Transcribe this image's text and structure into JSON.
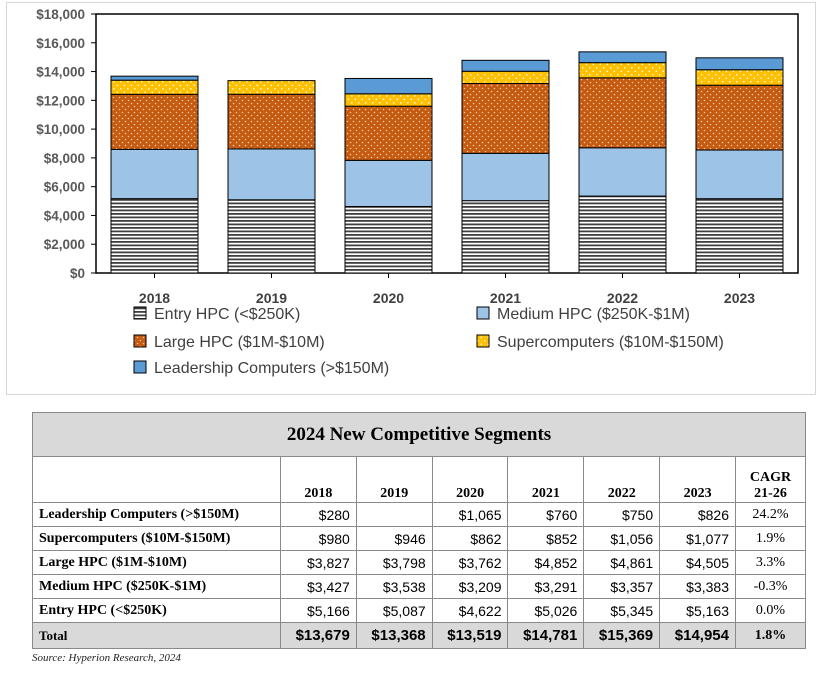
{
  "chart_data": {
    "type": "stacked-bar",
    "categories": [
      "2018",
      "2019",
      "2020",
      "2021",
      "2022",
      "2023"
    ],
    "ylim": [
      0,
      18000
    ],
    "yticks": [
      0,
      2000,
      4000,
      6000,
      8000,
      10000,
      12000,
      14000,
      16000,
      18000
    ],
    "ytick_labels": [
      "$0",
      "$2,000",
      "$4,000",
      "$6,000",
      "$8,000",
      "$10,000",
      "$12,000",
      "$14,000",
      "$16,000",
      "$18,000"
    ],
    "legend_placement": "bottom",
    "series": [
      {
        "name": "Entry HPC (<$250K)",
        "key": "entry",
        "color": "#404040",
        "pattern": "horizontal-stripes",
        "values": [
          5166,
          5087,
          4622,
          5026,
          5345,
          5163
        ]
      },
      {
        "name": "Medium HPC ($250K-$1M)",
        "key": "medium",
        "color": "#9dc3e6",
        "pattern": "solid",
        "values": [
          3427,
          3538,
          3209,
          3291,
          3357,
          3383
        ]
      },
      {
        "name": "Large HPC ($1M-$10M)",
        "key": "large",
        "color": "#c55a11",
        "pattern": "dots",
        "values": [
          3827,
          3798,
          3762,
          4852,
          4861,
          4505
        ]
      },
      {
        "name": "Supercomputers ($10M-$150M)",
        "key": "super",
        "color": "#ffc000",
        "pattern": "dots",
        "values": [
          980,
          946,
          862,
          852,
          1056,
          1077
        ]
      },
      {
        "name": "Leadership Computers (>$150M)",
        "key": "leader",
        "color": "#5b9bd5",
        "pattern": "solid",
        "values": [
          280,
          0,
          1065,
          760,
          750,
          826
        ]
      }
    ]
  },
  "table": {
    "title": "2024 New Competitive Segments",
    "columns": [
      "2018",
      "2019",
      "2020",
      "2021",
      "2022",
      "2023"
    ],
    "cagr_header_line1": "CAGR",
    "cagr_header_line2": "21-26",
    "rows": [
      {
        "label": "Leadership Computers (>$150M)",
        "values": [
          "$280",
          "",
          "$1,065",
          "$760",
          "$750",
          "$826"
        ],
        "cagr": "24.2%"
      },
      {
        "label": "Supercomputers ($10M-$150M)",
        "values": [
          "$980",
          "$946",
          "$862",
          "$852",
          "$1,056",
          "$1,077"
        ],
        "cagr": "1.9%"
      },
      {
        "label": "Large HPC ($1M-$10M)",
        "values": [
          "$3,827",
          "$3,798",
          "$3,762",
          "$4,852",
          "$4,861",
          "$4,505"
        ],
        "cagr": "3.3%"
      },
      {
        "label": "Medium HPC ($250K-$1M)",
        "values": [
          "$3,427",
          "$3,538",
          "$3,209",
          "$3,291",
          "$3,357",
          "$3,383"
        ],
        "cagr": "-0.3%"
      },
      {
        "label": "Entry HPC (<$250K)",
        "values": [
          "$5,166",
          "$5,087",
          "$4,622",
          "$5,026",
          "$5,345",
          "$5,163"
        ],
        "cagr": "0.0%"
      }
    ],
    "total": {
      "label": "Total",
      "values": [
        "$13,679",
        "$13,368",
        "$13,519",
        "$14,781",
        "$15,369",
        "$14,954"
      ],
      "cagr": "1.8%"
    },
    "source": "Source: Hyperion Research, 2024"
  }
}
